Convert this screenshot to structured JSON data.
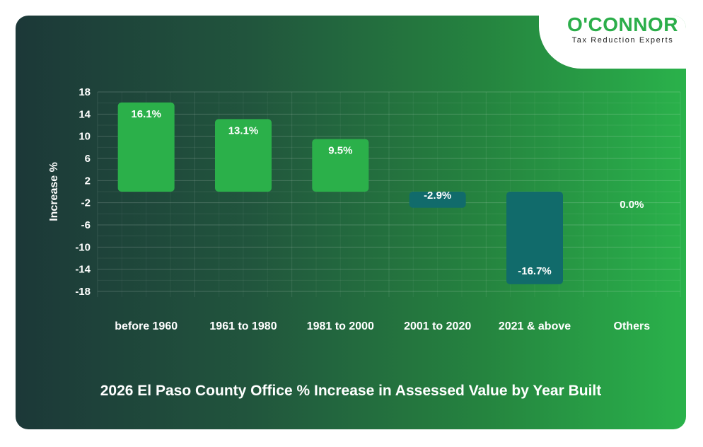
{
  "logo": {
    "name": "O'CONNOR",
    "tagline": "Tax Reduction Experts"
  },
  "colors": {
    "positive": "#2bb04a",
    "negative": "#116b6b",
    "text": "#ffffff",
    "brand": "#2bae4a"
  },
  "chart_data": {
    "type": "bar",
    "title": "2026 El Paso County Office % Increase in Assessed Value by Year Built",
    "xlabel": "",
    "ylabel": "Increase %",
    "categories": [
      "before 1960",
      "1961 to 1980",
      "1981 to 2000",
      "2001 to 2020",
      "2021 & above",
      "Others"
    ],
    "values": [
      16.1,
      13.1,
      9.5,
      -2.9,
      -16.7,
      0.0
    ],
    "data_labels": [
      "16.1%",
      "13.1%",
      "9.5%",
      "-2.9%",
      "-16.7%",
      "0.0%"
    ],
    "ylim": [
      -18,
      18
    ],
    "yticks": [
      "18",
      "14",
      "10",
      "6",
      "2",
      "-2",
      "-6",
      "-10",
      "-14",
      "-18"
    ],
    "grid": true,
    "legend": "none"
  }
}
